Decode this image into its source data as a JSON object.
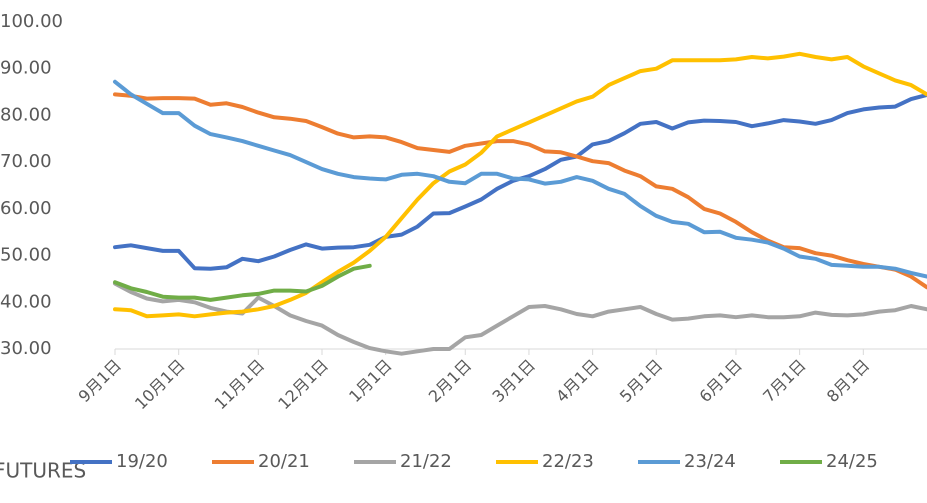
{
  "chart_data": {
    "type": "line",
    "note": "FUTURES",
    "categories": [
      "9月1日",
      null,
      null,
      null,
      "10月1日",
      null,
      null,
      null,
      null,
      "11月1日",
      null,
      null,
      null,
      "12月1日",
      null,
      null,
      null,
      "1月1日",
      null,
      null,
      null,
      null,
      "2月1日",
      null,
      null,
      null,
      "3月1日",
      null,
      null,
      null,
      "4月1日",
      null,
      null,
      null,
      "5月1日",
      null,
      null,
      null,
      null,
      "6月1日",
      null,
      null,
      null,
      "7月1日",
      null,
      null,
      null,
      "8月1日",
      null,
      null,
      null,
      null
    ],
    "series": [
      {
        "name": "19/20",
        "color": "#4472c4",
        "values": [
          51.8,
          52.2,
          51.6,
          51.0,
          51.0,
          47.3,
          47.2,
          47.5,
          49.3,
          48.8,
          49.8,
          51.2,
          52.4,
          51.5,
          51.7,
          51.8,
          52.3,
          54.0,
          54.5,
          56.2,
          59.0,
          59.1,
          60.5,
          62.0,
          64.3,
          66.0,
          67.0,
          68.5,
          70.5,
          71.2,
          73.8,
          74.5,
          76.2,
          78.2,
          78.6,
          77.2,
          78.5,
          78.9,
          78.8,
          78.6,
          77.7,
          78.3,
          79.0,
          78.7,
          78.2,
          79.0,
          80.5,
          81.3,
          81.7,
          81.9,
          83.5,
          84.4
        ]
      },
      {
        "name": "20/21",
        "color": "#ed7d31",
        "values": [
          84.5,
          84.2,
          83.6,
          83.7,
          83.7,
          83.6,
          82.3,
          82.6,
          81.8,
          80.6,
          79.6,
          79.3,
          78.8,
          77.5,
          76.1,
          75.3,
          75.5,
          75.3,
          74.3,
          73.0,
          72.6,
          72.2,
          73.5,
          74.0,
          74.5,
          74.5,
          73.8,
          72.3,
          72.1,
          71.2,
          70.2,
          69.8,
          68.2,
          67.0,
          64.8,
          64.3,
          62.5,
          60.0,
          59.0,
          57.2,
          55.0,
          53.2,
          51.8,
          51.6,
          50.5,
          50.0,
          49.0,
          48.2,
          47.6,
          47.0,
          45.5,
          43.2
        ]
      },
      {
        "name": "21/22",
        "color": "#a5a5a5",
        "values": [
          44.0,
          42.2,
          40.8,
          40.2,
          40.5,
          40.0,
          38.8,
          38.0,
          37.6,
          41.0,
          39.2,
          37.2,
          36.0,
          35.0,
          33.0,
          31.5,
          30.2,
          29.5,
          29.0,
          29.5,
          30.0,
          30.0,
          32.5,
          33.0,
          35.0,
          37.0,
          39.0,
          39.2,
          38.5,
          37.5,
          37.0,
          38.0,
          38.5,
          39.0,
          37.5,
          36.3,
          36.5,
          37.0,
          37.2,
          36.8,
          37.2,
          36.8,
          36.8,
          37.0,
          37.8,
          37.3,
          37.2,
          37.4,
          38.0,
          38.3,
          39.2,
          38.5
        ]
      },
      {
        "name": "22/23",
        "color": "#ffc000",
        "values": [
          38.5,
          38.3,
          37.0,
          37.2,
          37.4,
          37.0,
          37.4,
          37.8,
          38.0,
          38.5,
          39.2,
          40.5,
          42.0,
          44.3,
          46.5,
          48.5,
          51.0,
          54.0,
          58.0,
          62.0,
          65.5,
          68.0,
          69.5,
          72.0,
          75.5,
          77.0,
          78.5,
          80.0,
          81.5,
          83.0,
          84.0,
          86.5,
          88.0,
          89.5,
          90.0,
          91.8,
          91.8,
          91.8,
          91.8,
          92.0,
          92.5,
          92.2,
          92.6,
          93.2,
          92.5,
          92.0,
          92.5,
          90.5,
          89.0,
          87.5,
          86.5,
          84.5
        ]
      },
      {
        "name": "23/24",
        "color": "#5b9bd5",
        "values": [
          87.2,
          84.5,
          82.5,
          80.5,
          80.5,
          77.8,
          76.0,
          75.3,
          74.5,
          73.5,
          72.5,
          71.5,
          70.0,
          68.5,
          67.5,
          66.8,
          66.5,
          66.3,
          67.3,
          67.5,
          67.0,
          65.8,
          65.5,
          67.5,
          67.5,
          66.5,
          66.3,
          65.4,
          65.8,
          66.8,
          66.0,
          64.3,
          63.2,
          60.6,
          58.5,
          57.2,
          56.8,
          55.0,
          55.1,
          53.8,
          53.4,
          52.8,
          51.5,
          49.8,
          49.3,
          48.0,
          47.8,
          47.6,
          47.6,
          47.2,
          46.3,
          45.5
        ]
      },
      {
        "name": "24/25",
        "color": "#70ad47",
        "values": [
          44.3,
          43.0,
          42.2,
          41.2,
          41.0,
          41.0,
          40.5,
          41.0,
          41.5,
          41.8,
          42.5,
          42.5,
          42.3,
          43.5,
          45.5,
          47.2,
          47.8,
          null,
          null,
          null,
          null,
          null,
          null,
          null,
          null,
          null,
          null,
          null,
          null,
          null,
          null,
          null,
          null,
          null,
          null,
          null,
          null,
          null,
          null,
          null,
          null,
          null,
          null,
          null,
          null,
          null,
          null,
          null,
          null,
          null,
          null,
          null
        ]
      }
    ],
    "ylim": [
      30,
      100
    ],
    "yticks": [
      {
        "value": 30,
        "label": "30.00"
      },
      {
        "value": 40,
        "label": "40.00"
      },
      {
        "value": 50,
        "label": "50.00"
      },
      {
        "value": 60,
        "label": "60.00"
      },
      {
        "value": 70,
        "label": "70.00"
      },
      {
        "value": 80,
        "label": "80.00"
      },
      {
        "value": 90,
        "label": "90.00"
      },
      {
        "value": 100,
        "label": "100.00"
      }
    ],
    "grid": false,
    "legend": "bottom"
  }
}
